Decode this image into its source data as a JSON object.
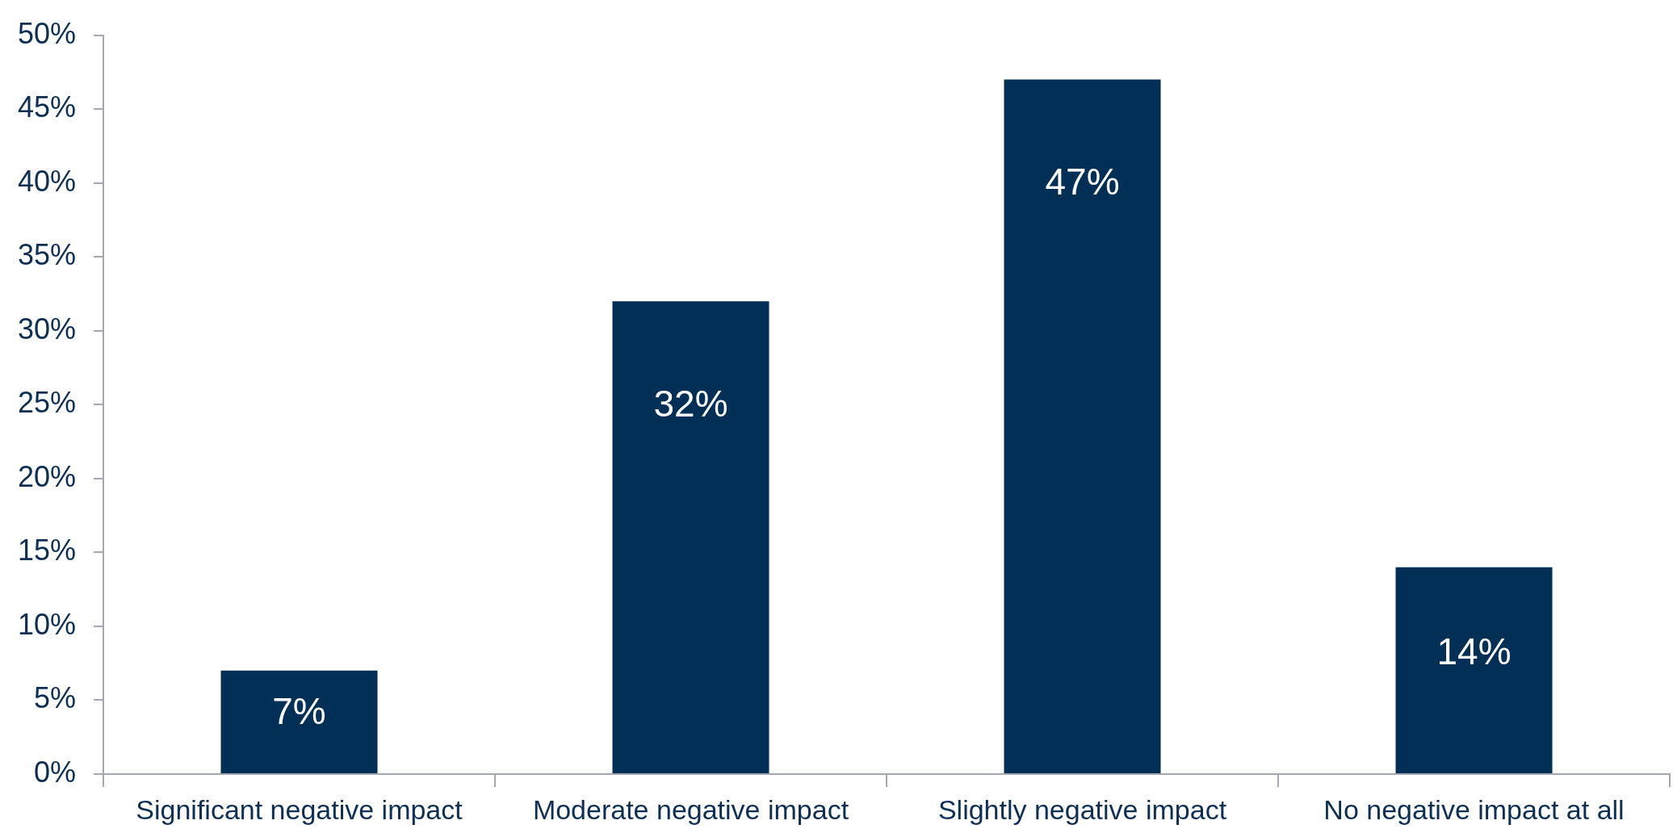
{
  "chart_data": {
    "type": "bar",
    "categories": [
      "Significant negative impact",
      "Moderate negative impact",
      "Slightly negative impact",
      "No negative impact at all"
    ],
    "values": [
      7,
      32,
      47,
      14
    ],
    "value_labels": [
      "7%",
      "32%",
      "47%",
      "14%"
    ],
    "color": "#012f56",
    "ylim": [
      0,
      50
    ],
    "yticks": [
      {
        "value": 0,
        "label": "0%"
      },
      {
        "value": 5,
        "label": "5%"
      },
      {
        "value": 10,
        "label": "10%"
      },
      {
        "value": 15,
        "label": "15%"
      },
      {
        "value": 20,
        "label": "20%"
      },
      {
        "value": 25,
        "label": "25%"
      },
      {
        "value": 30,
        "label": "30%"
      },
      {
        "value": 35,
        "label": "35%"
      },
      {
        "value": 40,
        "label": "40%"
      },
      {
        "value": 45,
        "label": "45%"
      },
      {
        "value": 50,
        "label": "50%"
      }
    ],
    "grid": false
  }
}
